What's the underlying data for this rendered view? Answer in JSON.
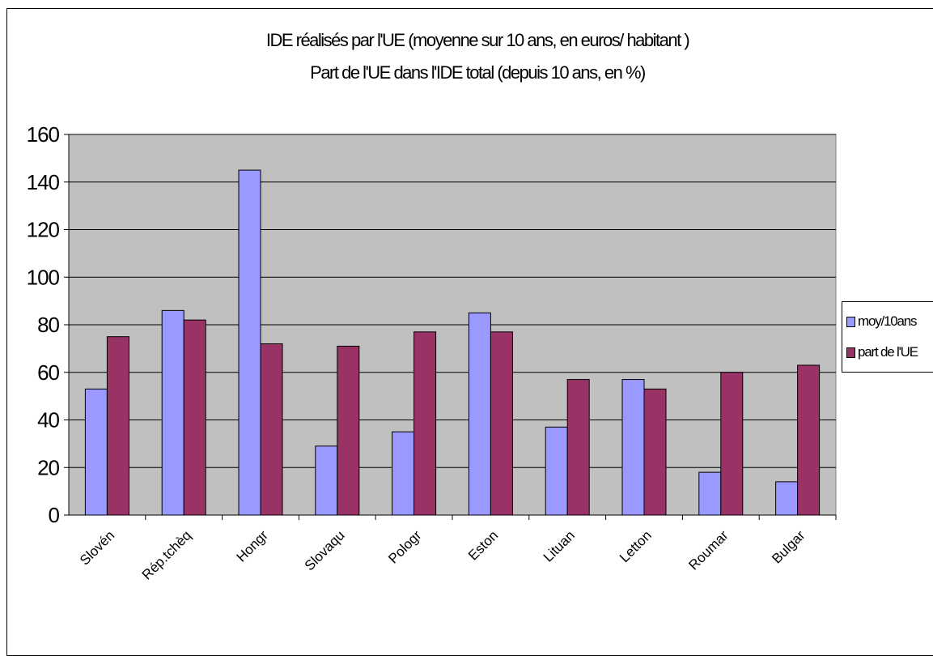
{
  "chart_data": {
    "type": "bar",
    "title": "IDE réalisés par l'UE (moyenne sur 10 ans, en euros/ habitant )",
    "subtitle": "Part de l'UE dans l'IDE total (depuis 10 ans, en %)",
    "categories": [
      "Slovénie",
      "Rép.tchèque",
      "Hongrie",
      "Slovaquie",
      "Pologne",
      "Estonie",
      "Lituanie",
      "Lettonie",
      "Roumanie",
      "Bulgarie"
    ],
    "category_labels_visible": [
      "Slovén",
      "Rép.tchèq",
      "Hongr",
      "Slovaqu",
      "Pologr",
      "Eston",
      "Lituan",
      "Letton",
      "Roumar",
      "Bulgar"
    ],
    "series": [
      {
        "name": "moy/10ans",
        "color": "#9999ff",
        "values": [
          53,
          86,
          145,
          29,
          35,
          85,
          37,
          57,
          18,
          14
        ]
      },
      {
        "name": "part de l'UE",
        "color": "#993366",
        "values": [
          75,
          82,
          72,
          71,
          77,
          77,
          57,
          53,
          60,
          63
        ]
      }
    ],
    "ylim": [
      0,
      160
    ],
    "yticks": [
      0,
      20,
      40,
      60,
      80,
      100,
      120,
      140,
      160
    ],
    "grid": true,
    "plot_background": "#c0c0c0",
    "legend_position": "right"
  }
}
